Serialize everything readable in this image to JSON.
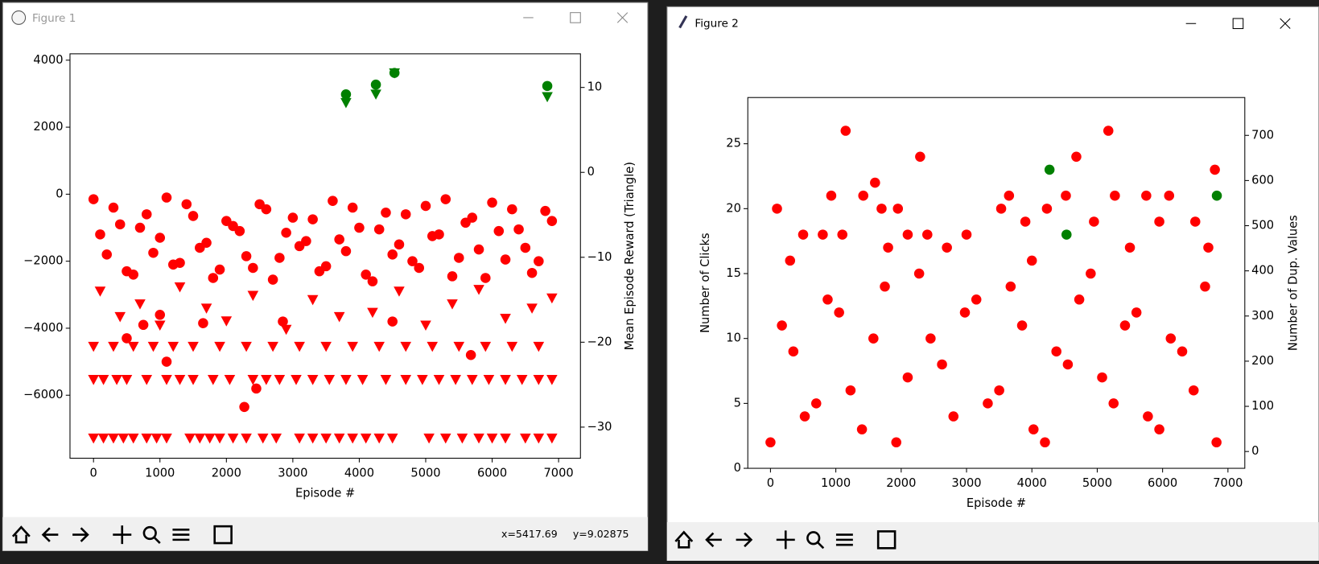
{
  "windows": [
    {
      "title": "Figure 1",
      "status_x": "x=5417.69",
      "status_y": "y=9.02875"
    },
    {
      "title": "Figure 2"
    }
  ],
  "chart_data": [
    {
      "type": "scatter",
      "xlabel": "Episode #",
      "y2label": "Mean Episode Reward (Triangle)",
      "xlim": [
        -354,
        7329
      ],
      "xticks": [
        0,
        1000,
        2000,
        3000,
        4000,
        5000,
        6000,
        7000
      ],
      "ylim": [
        -7880,
        4190
      ],
      "yticks": [
        {
          "value": -6000,
          "label": "−6000"
        },
        {
          "value": -4000,
          "label": "−4000"
        },
        {
          "value": -2000,
          "label": "−2000"
        },
        0,
        2000,
        4000
      ],
      "y2lim": [
        -33.66,
        13.96
      ],
      "y2ticks": [
        {
          "value": -30,
          "label": "−30"
        },
        {
          "value": -20,
          "label": "−20"
        },
        {
          "value": -10,
          "label": "−10"
        },
        0,
        10
      ],
      "series": [
        {
          "color": "#ff0000",
          "marker": "o",
          "x": [
            0,
            200,
            400,
            600,
            800,
            1000,
            1200,
            1400,
            1600,
            1800,
            2000,
            2200,
            2400,
            2600,
            2800,
            3000,
            3200,
            3400,
            3600,
            3800,
            4000,
            4200,
            4400,
            4600,
            4800,
            5000,
            5200,
            5400,
            5600,
            5800,
            6000,
            6200,
            6400,
            6600,
            6800,
            100,
            300,
            500,
            700,
            900,
            1100,
            1300,
            1500,
            1700,
            1900,
            2100,
            2300,
            2500,
            2700,
            2900,
            3100,
            3300,
            3500,
            3700,
            3900,
            4100,
            4300,
            4500,
            4700,
            4900,
            5100,
            5300,
            5500,
            5700,
            5900,
            6100,
            6300,
            6500,
            6700,
            6900,
            500,
            750,
            1000,
            1100,
            1650,
            2270,
            2450,
            2850,
            4500,
            5680
          ],
          "values": [
            -150,
            -1800,
            -900,
            -2400,
            -600,
            -1300,
            -2100,
            -300,
            -1600,
            -2500,
            -800,
            -1100,
            -2200,
            -450,
            -1900,
            -700,
            -1400,
            -2300,
            -200,
            -1700,
            -1000,
            -2600,
            -550,
            -1500,
            -2000,
            -350,
            -1200,
            -2450,
            -850,
            -1650,
            -250,
            -1950,
            -1050,
            -2350,
            -500,
            -1200,
            -400,
            -2300,
            -1000,
            -1750,
            -100,
            -2050,
            -650,
            -1450,
            -2250,
            -950,
            -1850,
            -300,
            -2550,
            -1150,
            -1550,
            -750,
            -2150,
            -1350,
            -400,
            -2400,
            -1050,
            -1800,
            -600,
            -2200,
            -1250,
            -150,
            -1900,
            -700,
            -2500,
            -1100,
            -450,
            -1600,
            -2000,
            -800,
            -4300,
            -3900,
            -3600,
            -5000,
            -3850,
            -6350,
            -5800,
            -3800,
            -3800,
            -4800
          ]
        },
        {
          "color": "#ff0000",
          "marker": "v",
          "axis": "y2",
          "x": [
            0,
            150,
            300,
            450,
            600,
            800,
            950,
            1100,
            1450,
            1600,
            1750,
            1900,
            2100,
            2300,
            2550,
            2750,
            3100,
            3300,
            3500,
            3700,
            3900,
            4100,
            4300,
            4500,
            5050,
            5300,
            5550,
            5800,
            6000,
            6200,
            6500,
            6700,
            6900,
            0,
            150,
            350,
            500,
            800,
            1100,
            1300,
            1500,
            1800,
            2050,
            2400,
            2600,
            2800,
            3050,
            3300,
            3550,
            3800,
            4050,
            4400,
            4700,
            4950,
            5200,
            5450,
            5700,
            5950,
            6200,
            6450,
            6700,
            6900,
            0,
            300,
            600,
            900,
            1200,
            1500,
            1900,
            2300,
            2700,
            3100,
            3500,
            3900,
            4300,
            4700,
            5100,
            5500,
            5900,
            6300,
            6700,
            100,
            400,
            700,
            1000,
            1300,
            1700,
            2000,
            2400,
            2900,
            3300,
            3700,
            4200,
            4600,
            5000,
            5400,
            5800,
            6200,
            6600,
            6900
          ],
          "values": [
            -31.3,
            -31.3,
            -31.3,
            -31.3,
            -31.3,
            -31.3,
            -31.3,
            -31.3,
            -31.3,
            -31.3,
            -31.3,
            -31.3,
            -31.3,
            -31.3,
            -31.3,
            -31.3,
            -31.3,
            -31.3,
            -31.3,
            -31.3,
            -31.3,
            -31.3,
            -31.3,
            -31.3,
            -31.3,
            -31.3,
            -31.3,
            -31.3,
            -31.3,
            -31.3,
            -31.3,
            -31.3,
            -31.3,
            -24.4,
            -24.4,
            -24.4,
            -24.4,
            -24.4,
            -24.4,
            -24.4,
            -24.4,
            -24.4,
            -24.4,
            -24.4,
            -24.4,
            -24.4,
            -24.4,
            -24.4,
            -24.4,
            -24.4,
            -24.4,
            -24.4,
            -24.4,
            -24.4,
            -24.4,
            -24.4,
            -24.4,
            -24.4,
            -24.4,
            -24.4,
            -24.4,
            -24.4,
            -20.5,
            -20.5,
            -20.5,
            -20.5,
            -20.5,
            -20.5,
            -20.5,
            -20.5,
            -20.5,
            -20.5,
            -20.5,
            -20.5,
            -20.5,
            -20.5,
            -20.5,
            -20.5,
            -20.5,
            -20.5,
            -20.5,
            -14,
            -17,
            -15.5,
            -18,
            -13.5,
            -16,
            -17.5,
            -14.5,
            -18.5,
            -15,
            -17,
            -16.5,
            -14,
            -18,
            -15.5,
            -13.8,
            -17.2,
            -16,
            -14.8
          ]
        },
        {
          "color": "#008000",
          "marker": "o",
          "x": [
            3800,
            4250,
            4530,
            6830
          ],
          "values": [
            2980,
            3270,
            3620,
            3230
          ]
        },
        {
          "color": "#008000",
          "marker": "v",
          "axis": "y2",
          "x": [
            3800,
            4250,
            4530,
            6830
          ],
          "values": [
            8.2,
            9.2,
            11.7,
            8.9
          ]
        }
      ]
    },
    {
      "type": "scatter",
      "xlabel": "Episode #",
      "ylabel": "Number of Clicks",
      "y2label": "Number of Dup. Values",
      "xlim": [
        -347,
        7258
      ],
      "xticks": [
        0,
        1000,
        2000,
        3000,
        4000,
        5000,
        6000,
        7000
      ],
      "ylim": [
        0,
        28.56
      ],
      "yticks": [
        0,
        5,
        10,
        15,
        20,
        25
      ],
      "y2lim": [
        -37.2,
        783.8
      ],
      "y2ticks": [
        0,
        100,
        200,
        300,
        400,
        500,
        600,
        700
      ],
      "series": [
        {
          "color": "#ff0000",
          "marker": "o",
          "x": [
            0,
            350,
            700,
            1050,
            1400,
            1750,
            2100,
            2450,
            2800,
            3150,
            3500,
            3850,
            4200,
            4550,
            4900,
            5250,
            5600,
            5950,
            6300,
            6650,
            175,
            525,
            875,
            1225,
            1575,
            1925,
            2275,
            2625,
            2975,
            3325,
            3675,
            4025,
            4375,
            4725,
            5075,
            5425,
            5775,
            6125,
            6475,
            6825,
            100,
            1150,
            930,
            1420,
            1600,
            1700,
            1950,
            2290,
            3530,
            3650,
            4230,
            4520,
            4680,
            5170,
            5270,
            5750,
            6100,
            6800,
            500,
            800,
            1100,
            2100,
            2400,
            3000,
            3900,
            4950,
            5950,
            6500,
            300,
            1800,
            2700,
            5500,
            6700,
            4000
          ],
          "values": [
            2,
            9,
            5,
            12,
            3,
            14,
            7,
            10,
            4,
            13,
            6,
            11,
            2,
            8,
            15,
            5,
            12,
            3,
            9,
            14,
            11,
            4,
            13,
            6,
            10,
            2,
            15,
            8,
            12,
            5,
            14,
            3,
            9,
            13,
            7,
            11,
            4,
            10,
            6,
            2,
            20,
            26,
            21,
            21,
            22,
            20,
            20,
            24,
            20,
            21,
            20,
            21,
            24,
            26,
            21,
            21,
            21,
            23,
            18,
            18,
            18,
            18,
            18,
            18,
            19,
            19,
            19,
            19,
            16,
            17,
            17,
            17,
            17,
            16
          ]
        },
        {
          "color": "#008000",
          "marker": "o",
          "x": [
            4270,
            4530,
            6830
          ],
          "values": [
            23,
            18,
            21
          ]
        }
      ]
    }
  ]
}
